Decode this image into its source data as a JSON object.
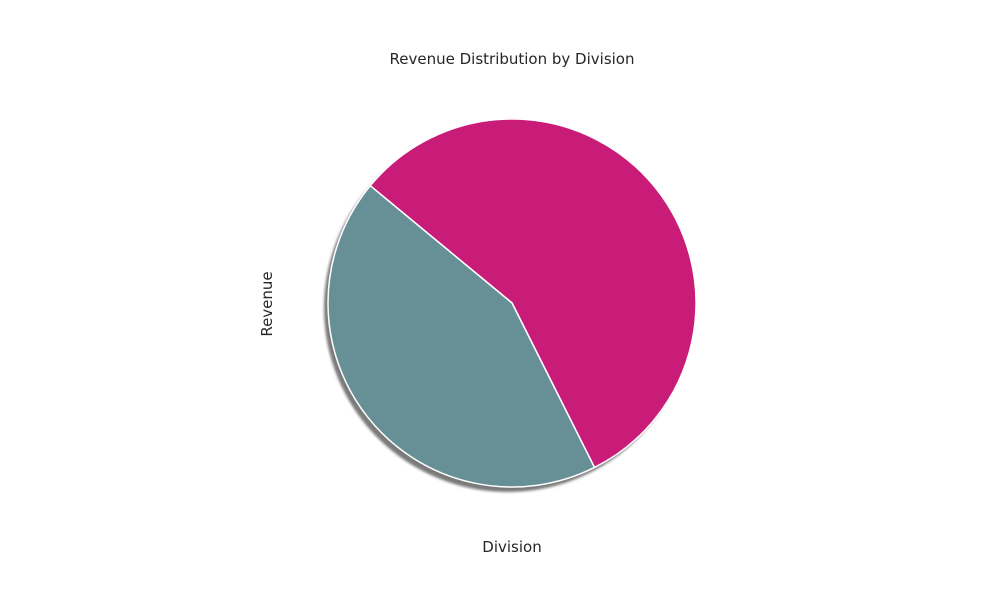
{
  "chart_data": {
    "type": "pie",
    "title": "Revenue Distribution by Division",
    "xlabel": "Division",
    "ylabel": "Revenue",
    "legend": "none",
    "grid": false,
    "shadow": true,
    "slices": [
      {
        "value": 56.6,
        "color": "#c91c79"
      },
      {
        "value": 43.4,
        "color": "#669096"
      }
    ]
  }
}
